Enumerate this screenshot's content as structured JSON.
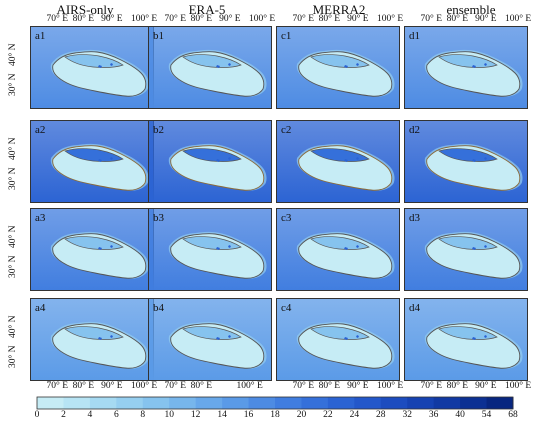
{
  "columns": [
    "AIRS-only",
    "ERA-5",
    "MERRA2",
    "ensemble"
  ],
  "panels": [
    [
      "a1",
      "b1",
      "c1",
      "d1"
    ],
    [
      "a2",
      "b2",
      "c2",
      "d2"
    ],
    [
      "a3",
      "b3",
      "c3",
      "d3"
    ],
    [
      "a4",
      "b4",
      "c4",
      "d4"
    ]
  ],
  "lon_ticks_top": [
    "70° E",
    "80° E",
    "90° E",
    "100° E"
  ],
  "lon_ticks_bottom": {
    "a": [
      "70° E",
      "80° E",
      "90° E",
      "100° E"
    ],
    "b": [
      "70° E",
      "80° E",
      "100° E"
    ],
    "c": [
      "70° E",
      "80° E",
      "90° E",
      "100° E"
    ],
    "d": [
      "70° E",
      "80° E",
      "90° E",
      "100° E"
    ]
  },
  "lat_ticks": [
    "30° N",
    "40° N"
  ],
  "colorbar": {
    "ticks": [
      "0",
      "2",
      "4",
      "6",
      "8",
      "10",
      "12",
      "14",
      "16",
      "18",
      "20",
      "22",
      "24",
      "28",
      "32",
      "36",
      "40",
      "54",
      "68"
    ],
    "colors": [
      "#c6ecf5",
      "#b7e4f4",
      "#a6daf2",
      "#96cff0",
      "#86c3ee",
      "#77b6ec",
      "#68a8ea",
      "#5a9ae7",
      "#4d8be3",
      "#407ddf",
      "#3570da",
      "#2b63d3",
      "#2357ca",
      "#1c4cbf",
      "#1642b2",
      "#1139a3",
      "#0c3093",
      "#082680"
    ]
  },
  "row_tints": [
    {
      "bg": "#4d8be3",
      "land": "#c6ecf5"
    },
    {
      "bg": "#2b63d3",
      "land": "#c6ecf5"
    },
    {
      "bg": "#407ddf",
      "land": "#c6ecf5"
    },
    {
      "bg": "#5a9ae7",
      "land": "#c6ecf5"
    }
  ]
}
